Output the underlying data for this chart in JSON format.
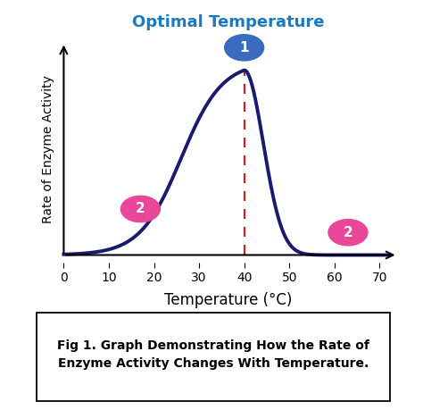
{
  "title": "Optimal Temperature",
  "title_color": "#1a7abf",
  "title_fontsize": 13,
  "xlabel": "Temperature (°C)",
  "xlabel_fontsize": 12,
  "ylabel": "Rate of Enzyme Activity",
  "ylabel_fontsize": 10,
  "xlim": [
    -1,
    74
  ],
  "ylim": [
    -0.04,
    1.18
  ],
  "x_ticks": [
    0,
    10,
    20,
    30,
    40,
    50,
    60,
    70
  ],
  "curve_color": "#1a1a6e",
  "curve_linewidth": 2.8,
  "optimal_temp": 40,
  "dashed_line_color": "#cc2222",
  "circle1_color": "#3a6bbf",
  "circle2_color": "#e8479a",
  "background_color": "#ffffff",
  "caption_line1": "Fig 1. Graph Demonstrating How the Rate of",
  "caption_line2": "Enzyme Activity Changes With Temperature.",
  "caption_fontsize": 10
}
